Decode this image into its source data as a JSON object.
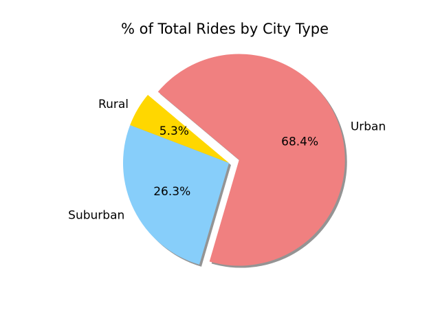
{
  "chart_data": {
    "type": "pie",
    "title": "% of Total Rides by City Type",
    "categories": [
      "Rural",
      "Suburban",
      "Urban"
    ],
    "values": [
      5.3,
      26.3,
      68.4
    ],
    "labels": [
      "5.3%",
      "26.3%",
      "68.4%"
    ],
    "colors": [
      "#ffd700",
      "#87cefa",
      "#f08080"
    ],
    "explode": [
      0,
      0,
      0.1
    ],
    "shadow": true
  }
}
